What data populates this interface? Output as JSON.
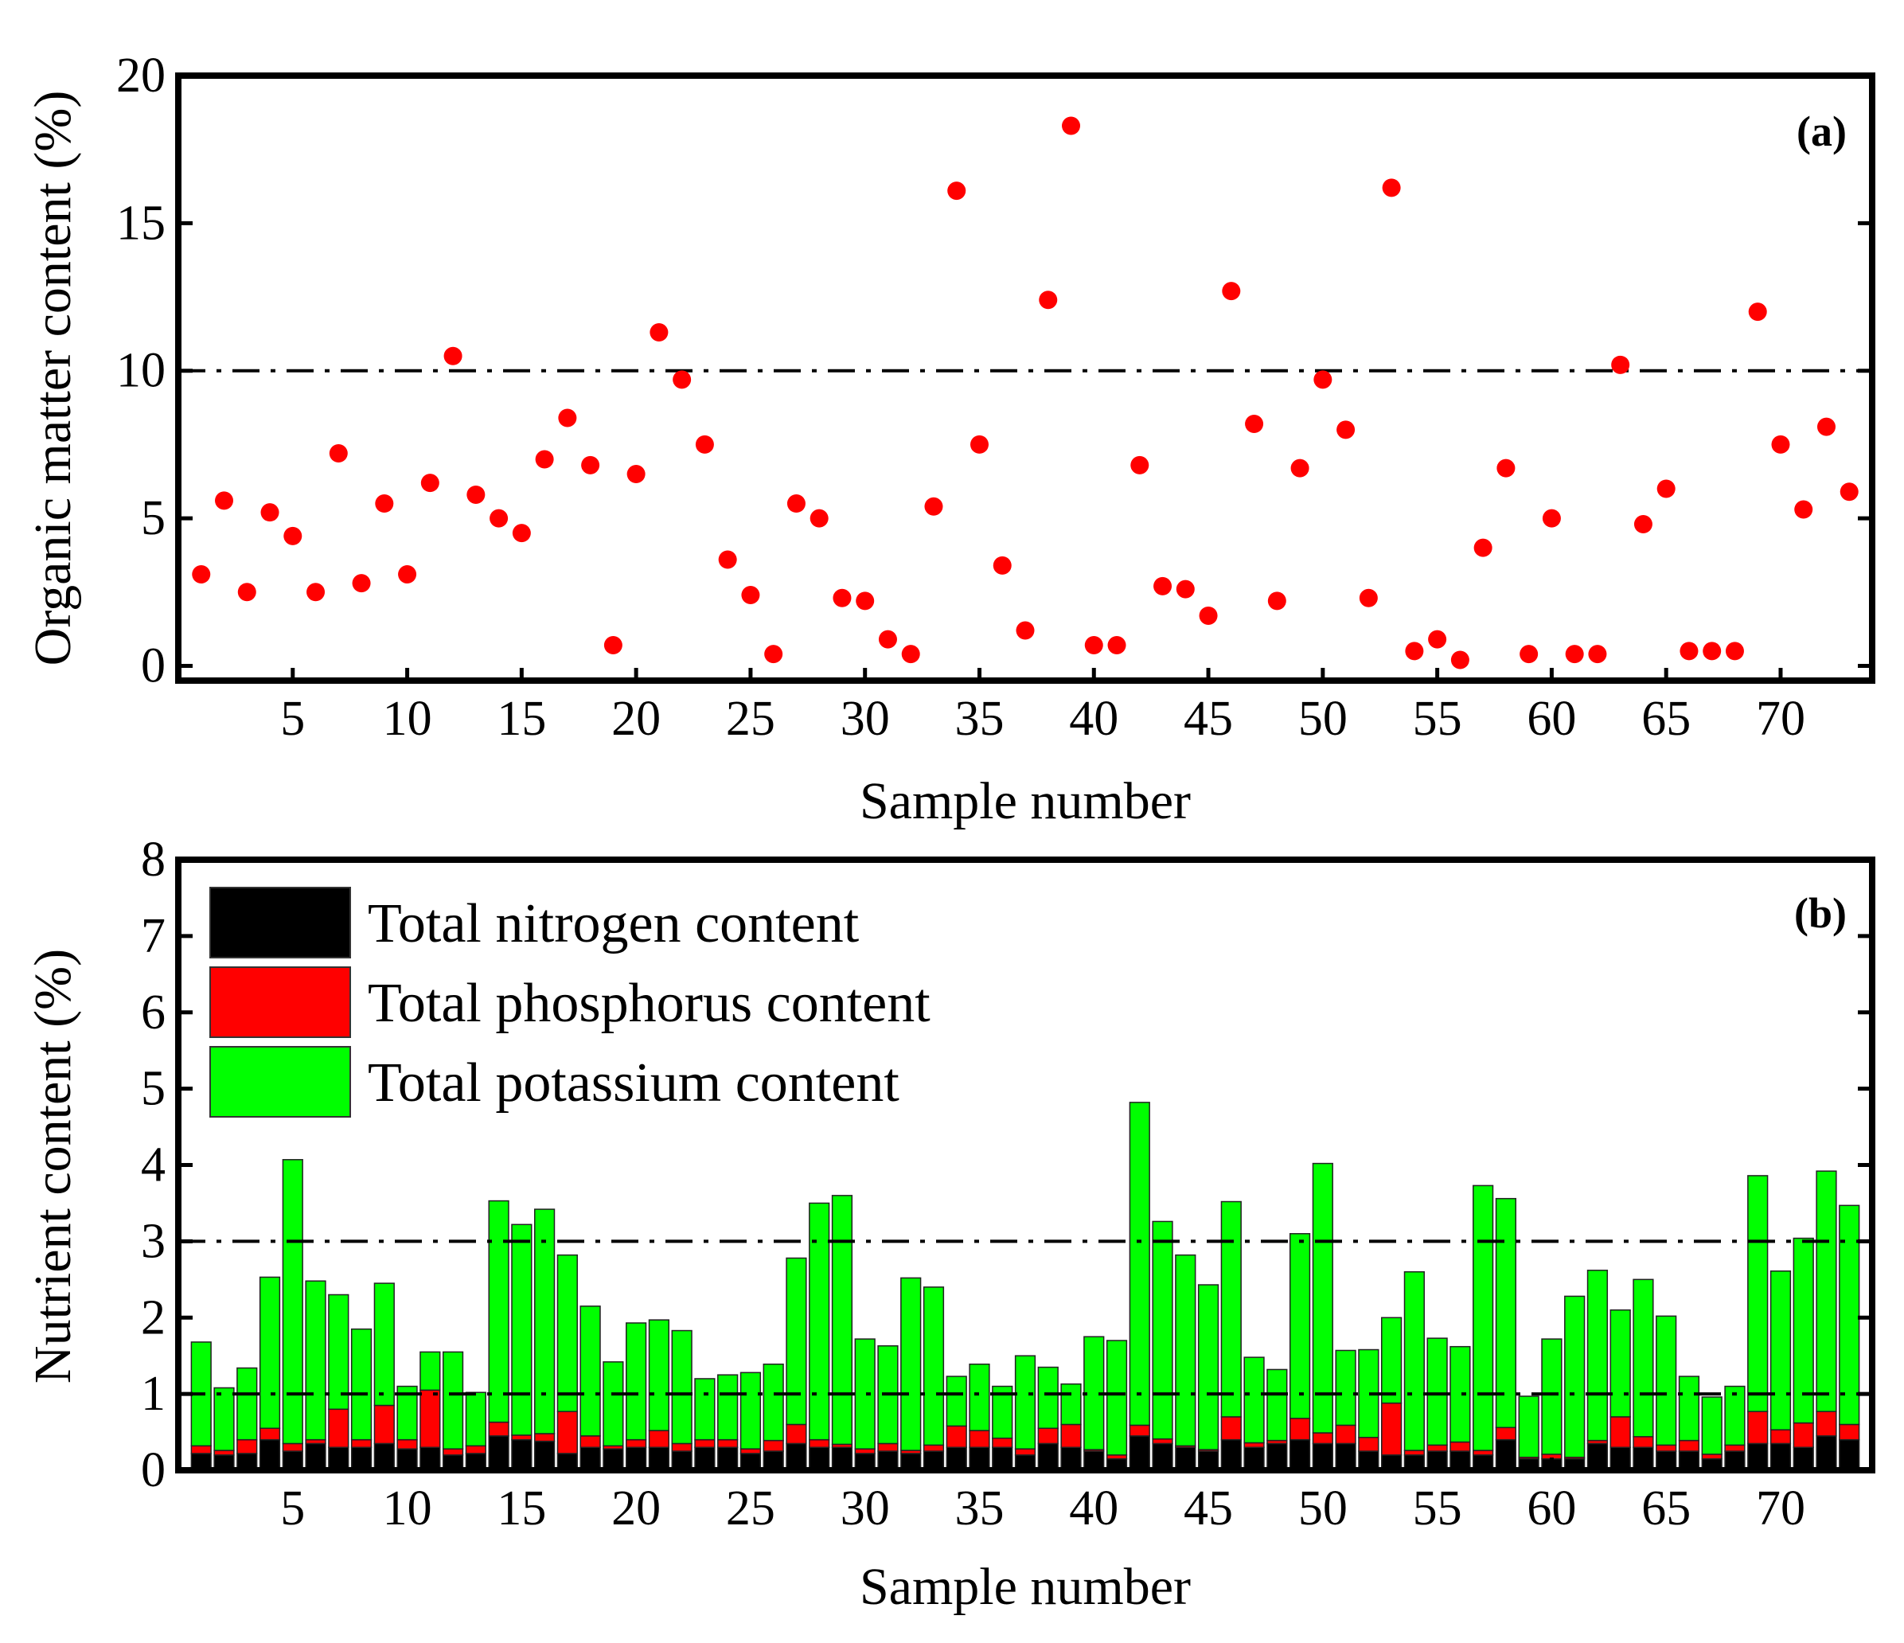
{
  "chart_data": [
    {
      "panel": "a",
      "type": "scatter",
      "panel_label": "(a)",
      "xlabel": "Sample number",
      "ylabel": "Organic matter content (%)",
      "xlim": [
        0,
        74
      ],
      "ylim": [
        -0.5,
        20
      ],
      "xticks": [
        5,
        10,
        15,
        20,
        25,
        30,
        35,
        40,
        45,
        50,
        55,
        60,
        65,
        70
      ],
      "yticks": [
        0,
        5,
        10,
        15,
        20
      ],
      "reference_line": 10,
      "marker_color": "#ff0000",
      "series": [
        {
          "name": "Organic matter content",
          "x": [
            1,
            2,
            3,
            4,
            5,
            6,
            7,
            8,
            9,
            10,
            11,
            12,
            13,
            14,
            15,
            16,
            17,
            18,
            19,
            20,
            21,
            22,
            23,
            24,
            25,
            26,
            27,
            28,
            29,
            30,
            31,
            32,
            33,
            34,
            35,
            36,
            37,
            38,
            39,
            40,
            41,
            42,
            43,
            44,
            45,
            46,
            47,
            48,
            49,
            50,
            51,
            52,
            53,
            54,
            55,
            56,
            57,
            58,
            59,
            60,
            61,
            62,
            63,
            64,
            65,
            66,
            67,
            68,
            69,
            70,
            71,
            72,
            73
          ],
          "values": [
            3.1,
            5.6,
            2.5,
            5.2,
            4.4,
            2.5,
            7.2,
            2.8,
            5.5,
            3.1,
            6.2,
            10.5,
            5.8,
            5.0,
            4.5,
            7.0,
            8.4,
            6.8,
            0.7,
            6.5,
            11.3,
            9.7,
            7.5,
            3.6,
            2.4,
            0.4,
            5.5,
            5.0,
            2.3,
            2.2,
            0.9,
            0.4,
            5.4,
            16.1,
            7.5,
            3.4,
            1.2,
            12.4,
            18.3,
            0.7,
            0.7,
            6.8,
            2.7,
            2.6,
            1.7,
            12.7,
            8.2,
            2.2,
            6.7,
            9.7,
            8.0,
            2.3,
            16.2,
            0.5,
            0.9,
            0.2,
            4.0,
            6.7,
            0.4,
            5.0,
            0.4,
            0.4,
            10.2,
            4.8,
            6.0,
            0.5,
            0.5,
            0.5,
            12.0,
            7.5,
            5.3,
            8.1,
            5.9
          ]
        }
      ]
    },
    {
      "panel": "b",
      "type": "bar",
      "stacked": true,
      "panel_label": "(b)",
      "xlabel": "Sample number",
      "ylabel": "Nutrient content (%)",
      "xlim": [
        0,
        74
      ],
      "ylim": [
        0,
        8
      ],
      "xticks": [
        5,
        10,
        15,
        20,
        25,
        30,
        35,
        40,
        45,
        50,
        55,
        60,
        65,
        70
      ],
      "yticks": [
        0,
        1,
        2,
        3,
        4,
        5,
        6,
        7,
        8
      ],
      "reference_lines": [
        1,
        3
      ],
      "legend_position": "top-left",
      "series": [
        {
          "name": "Total nitrogen content",
          "color": "#000000",
          "values": [
            0.22,
            0.2,
            0.22,
            0.4,
            0.25,
            0.35,
            0.3,
            0.3,
            0.35,
            0.28,
            0.3,
            0.2,
            0.22,
            0.45,
            0.4,
            0.38,
            0.22,
            0.3,
            0.28,
            0.3,
            0.3,
            0.25,
            0.3,
            0.3,
            0.22,
            0.25,
            0.35,
            0.3,
            0.3,
            0.22,
            0.25,
            0.22,
            0.25,
            0.3,
            0.3,
            0.3,
            0.2,
            0.35,
            0.3,
            0.25,
            0.15,
            0.45,
            0.35,
            0.3,
            0.25,
            0.4,
            0.3,
            0.35,
            0.4,
            0.35,
            0.35,
            0.25,
            0.2,
            0.2,
            0.25,
            0.25,
            0.2,
            0.4,
            0.15,
            0.15,
            0.15,
            0.35,
            0.3,
            0.3,
            0.25,
            0.25,
            0.15,
            0.25,
            0.35,
            0.35,
            0.3,
            0.45,
            0.4
          ]
        },
        {
          "name": "Total phosphorus content",
          "color": "#ff0000",
          "values": [
            0.1,
            0.06,
            0.18,
            0.15,
            0.1,
            0.05,
            0.5,
            0.1,
            0.5,
            0.12,
            0.75,
            0.08,
            0.1,
            0.18,
            0.06,
            0.1,
            0.55,
            0.15,
            0.04,
            0.1,
            0.22,
            0.1,
            0.1,
            0.1,
            0.06,
            0.14,
            0.25,
            0.1,
            0.04,
            0.06,
            0.1,
            0.04,
            0.08,
            0.28,
            0.22,
            0.12,
            0.08,
            0.2,
            0.3,
            0.02,
            0.05,
            0.14,
            0.06,
            0.02,
            0.02,
            0.3,
            0.06,
            0.04,
            0.28,
            0.14,
            0.24,
            0.18,
            0.68,
            0.06,
            0.08,
            0.12,
            0.06,
            0.16,
            0.02,
            0.06,
            0.02,
            0.04,
            0.4,
            0.14,
            0.08,
            0.14,
            0.06,
            0.08,
            0.42,
            0.18,
            0.32,
            0.32,
            0.2
          ]
        },
        {
          "name": "Total potassium content",
          "color": "#00ff00",
          "values": [
            1.36,
            0.82,
            0.94,
            1.98,
            3.72,
            2.08,
            1.5,
            1.45,
            1.6,
            0.7,
            0.5,
            1.27,
            0.7,
            2.9,
            2.76,
            2.94,
            2.05,
            1.7,
            1.1,
            1.53,
            1.45,
            1.48,
            0.8,
            0.85,
            1.0,
            1.0,
            2.18,
            3.1,
            3.26,
            1.44,
            1.28,
            2.26,
            2.07,
            0.65,
            0.87,
            0.68,
            1.22,
            0.8,
            0.53,
            1.48,
            1.5,
            4.23,
            2.85,
            2.5,
            2.16,
            2.82,
            1.12,
            0.93,
            2.42,
            3.53,
            0.98,
            1.15,
            1.12,
            2.34,
            1.4,
            1.25,
            3.47,
            3.0,
            0.8,
            1.51,
            2.11,
            2.23,
            1.4,
            2.06,
            1.69,
            0.84,
            0.75,
            0.77,
            3.09,
            2.08,
            2.42,
            3.15,
            2.87
          ]
        }
      ]
    }
  ]
}
